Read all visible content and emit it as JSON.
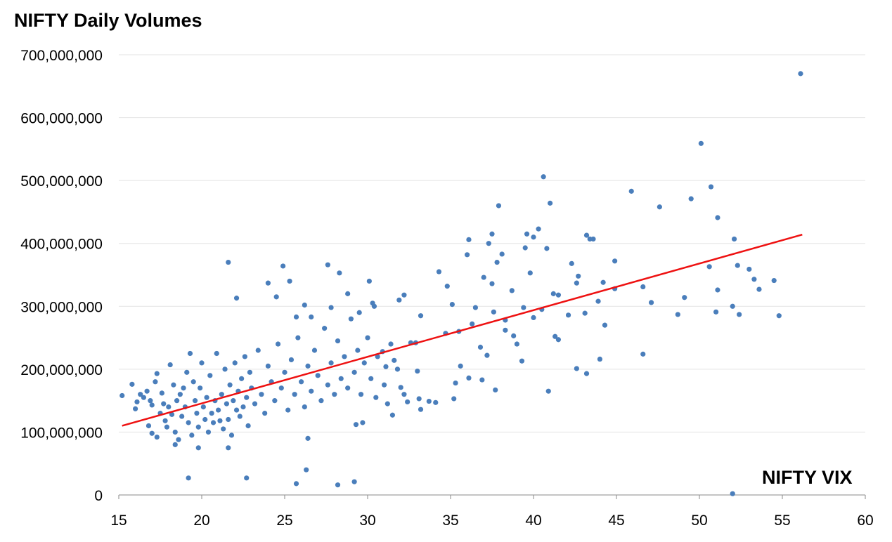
{
  "chart_data": {
    "type": "scatter",
    "title": "NIFTY Daily Volumes",
    "xlabel": "NIFTY VIX",
    "ylabel": "",
    "xlim": [
      15,
      60
    ],
    "ylim": [
      0,
      700000000
    ],
    "x_ticks": [
      15,
      20,
      25,
      30,
      35,
      40,
      45,
      50,
      55,
      60
    ],
    "x_tick_labels": [
      "15",
      "20",
      "25",
      "30",
      "35",
      "40",
      "45",
      "50",
      "55",
      "60"
    ],
    "y_ticks": [
      0,
      100000000,
      200000000,
      300000000,
      400000000,
      500000000,
      600000000,
      700000000
    ],
    "y_tick_labels": [
      "0",
      "100,000,000",
      "200,000,000",
      "300,000,000",
      "400,000,000",
      "500,000,000",
      "600,000,000",
      "700,000,000"
    ],
    "grid": "horizontal",
    "point_color": "#4a7ebb",
    "trendline": {
      "type": "linear",
      "color": "#ee1111",
      "x": [
        15.2,
        56.2
      ],
      "y": [
        110000000,
        414000000
      ]
    },
    "series": [
      {
        "points": [
          [
            15.2,
            158000000
          ],
          [
            15.8,
            176000000
          ],
          [
            16.0,
            137000000
          ],
          [
            16.1,
            148000000
          ],
          [
            16.3,
            160000000
          ],
          [
            16.5,
            155000000
          ],
          [
            16.7,
            165000000
          ],
          [
            16.8,
            110000000
          ],
          [
            16.9,
            150000000
          ],
          [
            17.0,
            143000000
          ],
          [
            17.0,
            98000000
          ],
          [
            17.2,
            180000000
          ],
          [
            17.3,
            193000000
          ],
          [
            17.3,
            92000000
          ],
          [
            17.5,
            130000000
          ],
          [
            17.6,
            162000000
          ],
          [
            17.7,
            145000000
          ],
          [
            17.8,
            118000000
          ],
          [
            17.9,
            108000000
          ],
          [
            18.0,
            140000000
          ],
          [
            18.1,
            207000000
          ],
          [
            18.2,
            128000000
          ],
          [
            18.3,
            175000000
          ],
          [
            18.4,
            100000000
          ],
          [
            18.5,
            150000000
          ],
          [
            18.6,
            88000000
          ],
          [
            18.7,
            160000000
          ],
          [
            18.8,
            125000000
          ],
          [
            18.9,
            170000000
          ],
          [
            19.0,
            140000000
          ],
          [
            19.1,
            195000000
          ],
          [
            19.2,
            115000000
          ],
          [
            19.3,
            225000000
          ],
          [
            19.4,
            95000000
          ],
          [
            19.5,
            180000000
          ],
          [
            19.6,
            150000000
          ],
          [
            19.7,
            130000000
          ],
          [
            19.8,
            108000000
          ],
          [
            19.9,
            170000000
          ],
          [
            20.0,
            210000000
          ],
          [
            20.1,
            140000000
          ],
          [
            20.2,
            120000000
          ],
          [
            20.3,
            155000000
          ],
          [
            20.4,
            100000000
          ],
          [
            20.5,
            190000000
          ],
          [
            20.6,
            130000000
          ],
          [
            20.7,
            115000000
          ],
          [
            20.8,
            150000000
          ],
          [
            20.9,
            225000000
          ],
          [
            21.0,
            135000000
          ],
          [
            21.1,
            118000000
          ],
          [
            21.2,
            160000000
          ],
          [
            21.3,
            105000000
          ],
          [
            21.4,
            200000000
          ],
          [
            21.5,
            145000000
          ],
          [
            21.6,
            120000000
          ],
          [
            21.7,
            175000000
          ],
          [
            21.8,
            95000000
          ],
          [
            21.9,
            150000000
          ],
          [
            22.0,
            210000000
          ],
          [
            22.1,
            135000000
          ],
          [
            22.2,
            165000000
          ],
          [
            22.3,
            125000000
          ],
          [
            22.4,
            185000000
          ],
          [
            22.5,
            140000000
          ],
          [
            22.6,
            220000000
          ],
          [
            22.7,
            155000000
          ],
          [
            22.8,
            110000000
          ],
          [
            22.9,
            195000000
          ],
          [
            23.0,
            170000000
          ],
          [
            23.2,
            145000000
          ],
          [
            23.4,
            230000000
          ],
          [
            23.6,
            160000000
          ],
          [
            23.8,
            130000000
          ],
          [
            24.0,
            205000000
          ],
          [
            24.2,
            180000000
          ],
          [
            24.4,
            150000000
          ],
          [
            24.6,
            240000000
          ],
          [
            24.8,
            170000000
          ],
          [
            25.0,
            195000000
          ],
          [
            25.2,
            135000000
          ],
          [
            25.4,
            215000000
          ],
          [
            25.6,
            160000000
          ],
          [
            25.8,
            250000000
          ],
          [
            26.0,
            180000000
          ],
          [
            26.2,
            140000000
          ],
          [
            26.4,
            205000000
          ],
          [
            26.6,
            165000000
          ],
          [
            26.8,
            230000000
          ],
          [
            27.0,
            190000000
          ],
          [
            27.2,
            150000000
          ],
          [
            27.4,
            265000000
          ],
          [
            27.6,
            175000000
          ],
          [
            27.8,
            210000000
          ],
          [
            28.0,
            160000000
          ],
          [
            28.2,
            245000000
          ],
          [
            28.4,
            185000000
          ],
          [
            28.6,
            220000000
          ],
          [
            28.8,
            170000000
          ],
          [
            29.0,
            280000000
          ],
          [
            29.2,
            195000000
          ],
          [
            29.4,
            230000000
          ],
          [
            29.6,
            160000000
          ],
          [
            29.8,
            210000000
          ],
          [
            30.0,
            250000000
          ],
          [
            30.2,
            185000000
          ],
          [
            30.4,
            300000000
          ],
          [
            30.6,
            220000000
          ],
          [
            31.0,
            175000000
          ],
          [
            31.4,
            240000000
          ],
          [
            31.8,
            200000000
          ],
          [
            32.2,
            160000000
          ],
          [
            21.6,
            370000000
          ],
          [
            22.1,
            313000000
          ],
          [
            24.0,
            337000000
          ],
          [
            24.5,
            315000000
          ],
          [
            24.9,
            364000000
          ],
          [
            25.3,
            340000000
          ],
          [
            26.2,
            302000000
          ],
          [
            27.6,
            366000000
          ],
          [
            28.3,
            353000000
          ],
          [
            28.8,
            320000000
          ],
          [
            30.1,
            340000000
          ],
          [
            30.3,
            305000000
          ],
          [
            29.5,
            290000000
          ],
          [
            27.8,
            298000000
          ],
          [
            26.6,
            283000000
          ],
          [
            25.7,
            283000000
          ],
          [
            19.2,
            27000000
          ],
          [
            22.7,
            27000000
          ],
          [
            25.7,
            18000000
          ],
          [
            26.3,
            40000000
          ],
          [
            28.2,
            16000000
          ],
          [
            29.2,
            21000000
          ],
          [
            26.4,
            90000000
          ],
          [
            21.6,
            75000000
          ],
          [
            19.8,
            75000000
          ],
          [
            18.4,
            80000000
          ],
          [
            29.3,
            112000000
          ],
          [
            29.7,
            115000000
          ],
          [
            31.5,
            127000000
          ],
          [
            32.4,
            148000000
          ],
          [
            33.1,
            153000000
          ],
          [
            33.7,
            149000000
          ],
          [
            34.1,
            147000000
          ],
          [
            33.2,
            136000000
          ],
          [
            33.0,
            197000000
          ],
          [
            32.6,
            242000000
          ],
          [
            32.9,
            242000000
          ],
          [
            31.9,
            310000000
          ],
          [
            32.2,
            318000000
          ],
          [
            33.2,
            285000000
          ],
          [
            34.3,
            355000000
          ],
          [
            34.8,
            332000000
          ],
          [
            35.1,
            303000000
          ],
          [
            35.6,
            205000000
          ],
          [
            36.0,
            382000000
          ],
          [
            36.1,
            406000000
          ],
          [
            36.5,
            298000000
          ],
          [
            37.0,
            346000000
          ],
          [
            37.3,
            400000000
          ],
          [
            37.5,
            336000000
          ],
          [
            37.8,
            370000000
          ],
          [
            37.9,
            460000000
          ],
          [
            38.1,
            383000000
          ],
          [
            37.5,
            415000000
          ],
          [
            38.3,
            278000000
          ],
          [
            38.7,
            325000000
          ],
          [
            39.0,
            240000000
          ],
          [
            39.3,
            213000000
          ],
          [
            39.5,
            393000000
          ],
          [
            39.6,
            415000000
          ],
          [
            39.8,
            353000000
          ],
          [
            40.0,
            410000000
          ],
          [
            40.3,
            423000000
          ],
          [
            40.6,
            506000000
          ],
          [
            40.8,
            392000000
          ],
          [
            41.0,
            464000000
          ],
          [
            41.2,
            320000000
          ],
          [
            41.5,
            318000000
          ],
          [
            40.9,
            165000000
          ],
          [
            41.3,
            252000000
          ],
          [
            41.5,
            247000000
          ],
          [
            42.1,
            286000000
          ],
          [
            42.3,
            368000000
          ],
          [
            42.6,
            337000000
          ],
          [
            42.7,
            348000000
          ],
          [
            43.1,
            289000000
          ],
          [
            43.2,
            413000000
          ],
          [
            43.4,
            407000000
          ],
          [
            43.6,
            407000000
          ],
          [
            43.9,
            308000000
          ],
          [
            44.2,
            338000000
          ],
          [
            44.3,
            270000000
          ],
          [
            44.0,
            216000000
          ],
          [
            44.9,
            328000000
          ],
          [
            44.9,
            372000000
          ],
          [
            42.6,
            201000000
          ],
          [
            43.2,
            193000000
          ],
          [
            45.9,
            483000000
          ],
          [
            46.6,
            331000000
          ],
          [
            46.6,
            224000000
          ],
          [
            47.1,
            306000000
          ],
          [
            47.6,
            458000000
          ],
          [
            48.7,
            287000000
          ],
          [
            49.1,
            314000000
          ],
          [
            49.5,
            471000000
          ],
          [
            50.1,
            559000000
          ],
          [
            50.6,
            363000000
          ],
          [
            50.7,
            490000000
          ],
          [
            51.1,
            326000000
          ],
          [
            51.1,
            441000000
          ],
          [
            51.0,
            291000000
          ],
          [
            52.1,
            407000000
          ],
          [
            52.0,
            300000000
          ],
          [
            52.3,
            365000000
          ],
          [
            52.4,
            287000000
          ],
          [
            53.0,
            359000000
          ],
          [
            53.3,
            343000000
          ],
          [
            53.6,
            327000000
          ],
          [
            54.5,
            341000000
          ],
          [
            54.8,
            285000000
          ],
          [
            52.0,
            2000000
          ],
          [
            56.1,
            670000000
          ],
          [
            34.7,
            257000000
          ],
          [
            35.5,
            260000000
          ],
          [
            36.3,
            272000000
          ],
          [
            36.8,
            235000000
          ],
          [
            37.2,
            222000000
          ],
          [
            37.6,
            291000000
          ],
          [
            38.3,
            262000000
          ],
          [
            38.8,
            253000000
          ],
          [
            39.4,
            298000000
          ],
          [
            40.0,
            282000000
          ],
          [
            40.5,
            295000000
          ],
          [
            35.3,
            178000000
          ],
          [
            36.1,
            186000000
          ],
          [
            36.9,
            183000000
          ],
          [
            37.7,
            167000000
          ],
          [
            35.2,
            153000000
          ],
          [
            31.1,
            204000000
          ],
          [
            31.6,
            214000000
          ],
          [
            32.0,
            171000000
          ],
          [
            30.9,
            228000000
          ],
          [
            30.5,
            155000000
          ],
          [
            31.2,
            145000000
          ]
        ]
      }
    ]
  }
}
